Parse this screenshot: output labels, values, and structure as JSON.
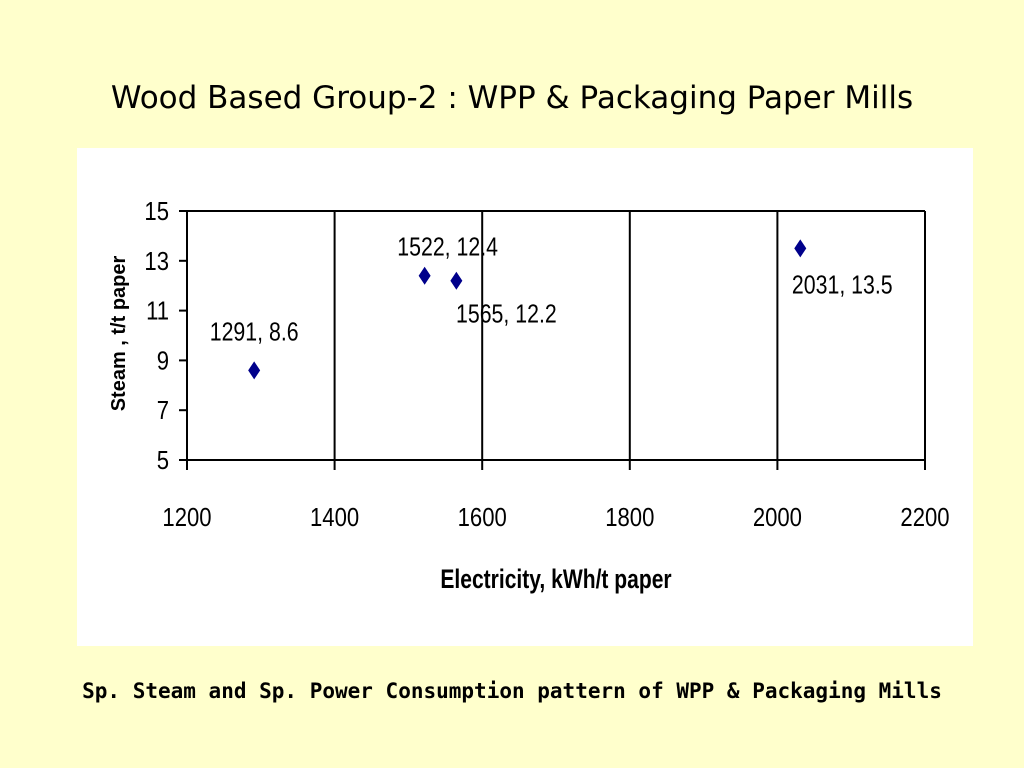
{
  "slide": {
    "title": "Wood Based Group-2 : WPP & Packaging Paper Mills",
    "caption": "Sp. Steam and Sp. Power Consumption pattern of WPP & Packaging Mills"
  },
  "chart_data": {
    "type": "scatter",
    "xlabel": "Electricity, kWh/t paper",
    "ylabel": "Steam , t/t paper",
    "xlim": [
      1200,
      2200
    ],
    "ylim": [
      5,
      15
    ],
    "x_ticks": [
      1200,
      1400,
      1600,
      1800,
      2000,
      2200
    ],
    "y_ticks": [
      5,
      7,
      9,
      11,
      13,
      15
    ],
    "grid": "vertical major gridlines",
    "marker": "diamond",
    "marker_color": "#00008b",
    "points": [
      {
        "x": 1291,
        "y": 8.6,
        "label": "1291, 8.6"
      },
      {
        "x": 1522,
        "y": 12.4,
        "label": "1522, 12.4"
      },
      {
        "x": 1565,
        "y": 12.2,
        "label": "1565, 12.2"
      },
      {
        "x": 2031,
        "y": 13.5,
        "label": "2031, 13.5"
      }
    ]
  },
  "colors": {
    "background": "#ffffcc",
    "plot_background": "#ffffff",
    "marker": "#00008b"
  }
}
